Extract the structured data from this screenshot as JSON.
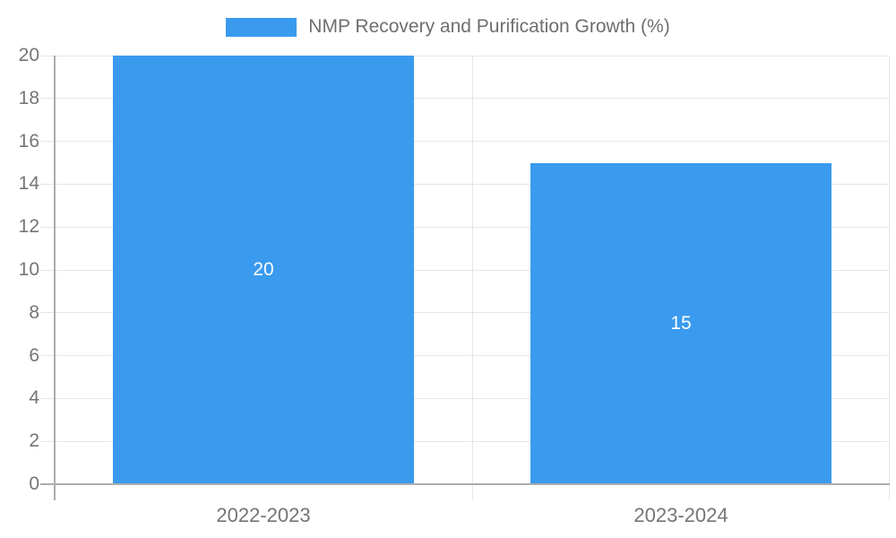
{
  "legend": {
    "label": "NMP Recovery and Purification Growth (%)"
  },
  "chart_data": {
    "type": "bar",
    "categories": [
      "2022-2023",
      "2023-2024"
    ],
    "values": [
      20,
      15
    ],
    "data_labels": [
      "20",
      "15"
    ],
    "series": [
      {
        "name": "NMP Recovery and Purification Growth (%)",
        "values": [
          20,
          15
        ]
      }
    ],
    "title": "NMP Recovery and Purification Growth (%)",
    "xlabel": "",
    "ylabel": "",
    "ylim": [
      0,
      20
    ],
    "ytick_step": 2,
    "ytick_labels": [
      "0",
      "2",
      "4",
      "6",
      "8",
      "10",
      "12",
      "14",
      "16",
      "18",
      "20"
    ],
    "grid": true,
    "legend_position": "top-center"
  },
  "colors": {
    "bar": "#399aee",
    "bar_label": "#ffffff",
    "grid": "#e6e6e6",
    "axis_line": "#adadad",
    "axis_text": "#757575",
    "legend_text": "#6f6f6f",
    "background": "#ffffff"
  }
}
